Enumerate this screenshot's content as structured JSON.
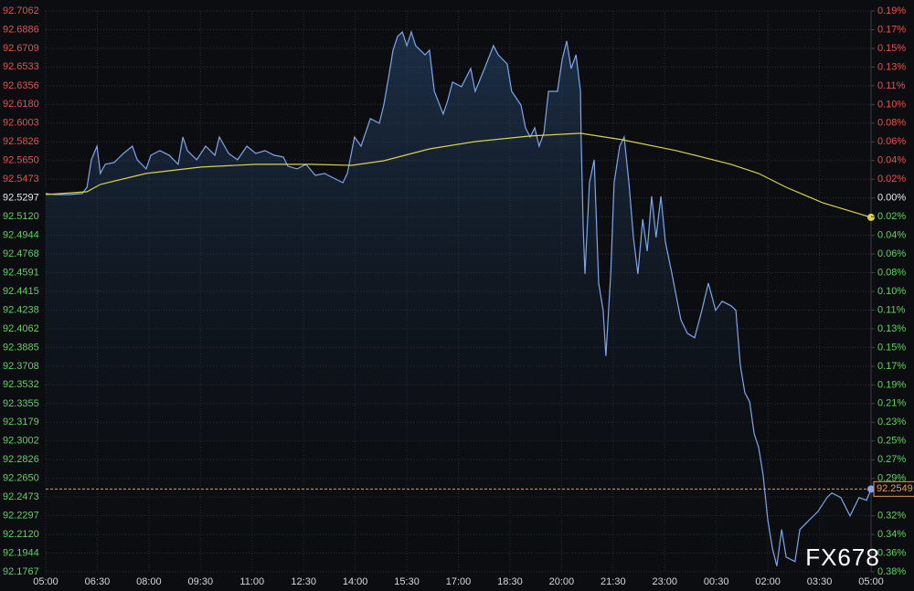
{
  "chart_data": {
    "type": "line",
    "watermark": "FX678",
    "xlim": [
      0,
      24
    ],
    "xticks": [
      {
        "value": 0,
        "label": "05:00"
      },
      {
        "value": 1.5,
        "label": "06:30"
      },
      {
        "value": 3,
        "label": "08:00"
      },
      {
        "value": 4.5,
        "label": "09:30"
      },
      {
        "value": 6,
        "label": "11:00"
      },
      {
        "value": 7.5,
        "label": "12:30"
      },
      {
        "value": 9,
        "label": "14:00"
      },
      {
        "value": 10.5,
        "label": "15:30"
      },
      {
        "value": 12,
        "label": "17:00"
      },
      {
        "value": 13.5,
        "label": "18:30"
      },
      {
        "value": 15,
        "label": "20:00"
      },
      {
        "value": 16.5,
        "label": "21:30"
      },
      {
        "value": 18,
        "label": "23:00"
      },
      {
        "value": 19.5,
        "label": "00:30"
      },
      {
        "value": 21,
        "label": "02:00"
      },
      {
        "value": 22.5,
        "label": "03:30"
      },
      {
        "value": 24,
        "label": "05:00"
      }
    ],
    "ylim": [
      92.1767,
      92.7062
    ],
    "yticks": [
      92.7062,
      92.6886,
      92.6709,
      92.6533,
      92.6356,
      {
        "value": 92.618,
        "label": "92.6180"
      },
      92.6003,
      92.5826,
      {
        "value": 92.565,
        "label": "92.5650"
      },
      92.5473,
      92.5297,
      {
        "value": 92.512,
        "label": "92.5120"
      },
      92.4944,
      92.4768,
      92.4591,
      92.4415,
      92.4238,
      92.4062,
      92.3885,
      92.3708,
      92.3532,
      92.3355,
      92.3179,
      92.3002,
      92.2826,
      {
        "value": 92.265,
        "label": "92.2650"
      },
      92.2473,
      92.2297,
      {
        "value": 92.212,
        "label": "92.2120"
      },
      92.1944,
      92.1767
    ],
    "y2lim": [
      -0.3815,
      0.1908
    ],
    "y2ticks": [
      {
        "value": 0.1908,
        "label": "0.19%"
      },
      {
        "value": 0.1717,
        "label": "0.17%"
      },
      {
        "value": 0.1526,
        "label": "0.15%"
      },
      {
        "value": 0.1335,
        "label": "0.13%"
      },
      {
        "value": 0.1145,
        "label": "0.11%"
      },
      {
        "value": 0.0954,
        "label": "0.10%"
      },
      {
        "value": 0.0763,
        "label": "0.08%"
      },
      {
        "value": 0.0572,
        "label": "0.06%"
      },
      {
        "value": 0.0382,
        "label": "0.04%"
      },
      {
        "value": 0.0191,
        "label": "0.02%"
      },
      {
        "value": 0,
        "label": "0.00%"
      },
      {
        "value": -0.0191,
        "label": "0.02%"
      },
      {
        "value": -0.0382,
        "label": "0.04%"
      },
      {
        "value": -0.0572,
        "label": "0.06%"
      },
      {
        "value": -0.0763,
        "label": "0.08%"
      },
      {
        "value": -0.0954,
        "label": "0.10%"
      },
      {
        "value": -0.1145,
        "label": "0.11%"
      },
      {
        "value": -0.1335,
        "label": "0.13%"
      },
      {
        "value": -0.1526,
        "label": "0.15%"
      },
      {
        "value": -0.1717,
        "label": "0.17%"
      },
      {
        "value": -0.1908,
        "label": "0.19%"
      },
      {
        "value": -0.2098,
        "label": "0.21%"
      },
      {
        "value": -0.2289,
        "label": "0.23%"
      },
      {
        "value": -0.248,
        "label": "0.25%"
      },
      {
        "value": -0.2671,
        "label": "0.27%"
      },
      {
        "value": -0.2862,
        "label": "0.29%"
      },
      {
        "value": -0.3243,
        "label": "0.32%"
      },
      {
        "value": -0.3434,
        "label": "0.34%"
      },
      {
        "value": -0.3625,
        "label": "0.36%"
      },
      {
        "value": -0.3815,
        "label": "0.38%"
      }
    ],
    "grid": true,
    "series": [
      {
        "color": "#7fa6e8",
        "x": [
          0,
          0.27,
          0.66,
          1.06,
          1.2,
          1.33,
          1.49,
          1.59,
          1.73,
          1.99,
          2.26,
          2.52,
          2.66,
          2.92,
          3.06,
          3.32,
          3.59,
          3.85,
          3.99,
          4.12,
          4.39,
          4.65,
          4.92,
          5.05,
          5.32,
          5.58,
          5.85,
          6.11,
          6.38,
          6.64,
          6.91,
          7.04,
          7.31,
          7.57,
          7.84,
          8.11,
          8.37,
          8.64,
          8.77,
          8.98,
          9.17,
          9.44,
          9.7,
          9.83,
          9.97,
          10.1,
          10.23,
          10.37,
          10.5,
          10.63,
          10.76,
          11.03,
          11.16,
          11.3,
          11.56,
          11.69,
          11.83,
          12.09,
          12.36,
          12.49,
          12.76,
          13.02,
          13.16,
          13.42,
          13.55,
          13.82,
          13.95,
          14.09,
          14.22,
          14.35,
          14.49,
          14.62,
          14.88,
          15.02,
          15.15,
          15.28,
          15.42,
          15.55,
          15.57,
          15.63,
          15.68,
          15.81,
          15.95,
          16.08,
          16.21,
          16.29,
          16.43,
          16.53,
          16.69,
          16.82,
          16.96,
          17.09,
          17.22,
          17.36,
          17.49,
          17.62,
          17.75,
          17.89,
          18.02,
          18.21,
          18.34,
          18.47,
          18.66,
          18.87,
          19.08,
          19.27,
          19.48,
          19.67,
          19.93,
          20.07,
          20.2,
          20.33,
          20.47,
          20.6,
          20.73,
          20.86,
          21,
          21.13,
          21.26,
          21.4,
          21.53,
          21.79,
          21.93,
          22.19,
          22.46,
          22.72,
          22.86,
          23.12,
          23.39,
          23.65,
          23.87,
          24
        ],
        "values": [
          92.5338,
          92.5329,
          92.5329,
          92.5338,
          92.5398,
          92.5657,
          92.5786,
          92.5528,
          92.5614,
          92.5631,
          92.5717,
          92.5786,
          92.5657,
          92.5571,
          92.57,
          92.5743,
          92.57,
          92.5614,
          92.5872,
          92.5743,
          92.5657,
          92.5786,
          92.57,
          92.5872,
          92.5717,
          92.5657,
          92.5786,
          92.5717,
          92.5743,
          92.57,
          92.5683,
          92.5597,
          92.5571,
          92.5614,
          92.551,
          92.5528,
          92.5485,
          92.5441,
          92.5528,
          92.5872,
          92.5786,
          92.6045,
          92.6002,
          92.6174,
          92.6433,
          92.6691,
          92.6821,
          92.6864,
          92.6734,
          92.6864,
          92.6734,
          92.6648,
          92.6691,
          92.6303,
          92.6088,
          92.6217,
          92.639,
          92.6347,
          92.6519,
          92.6303,
          92.6519,
          92.6734,
          92.6648,
          92.6562,
          92.6303,
          92.6174,
          92.5959,
          92.5872,
          92.5959,
          92.5786,
          92.5916,
          92.6303,
          92.6303,
          92.6605,
          92.6778,
          92.6519,
          92.6648,
          92.6303,
          92.5872,
          92.501,
          92.4579,
          92.5441,
          92.5657,
          92.4493,
          92.4235,
          92.3804,
          92.4579,
          92.5441,
          92.5786,
          92.5872,
          92.5441,
          92.4924,
          92.4579,
          92.5097,
          92.4795,
          92.5312,
          92.4924,
          92.5312,
          92.4881,
          92.4579,
          92.4364,
          92.4148,
          92.4019,
          92.3976,
          92.4235,
          92.4493,
          92.4235,
          92.4321,
          92.4278,
          92.4235,
          92.3717,
          92.3459,
          92.3373,
          92.3071,
          92.2942,
          92.2683,
          92.2252,
          92.1993,
          92.1821,
          92.2166,
          92.1907,
          92.1864,
          92.2166,
          92.2252,
          92.2338,
          92.2468,
          92.2511,
          92.2468,
          92.2295,
          92.2468,
          92.2442,
          92.2549
        ]
      },
      {
        "color": "#d8d24a",
        "x": [
          0,
          1.2,
          1.59,
          2.92,
          4.52,
          6.11,
          7.71,
          8.9,
          9.83,
          11.16,
          12.49,
          14.09,
          15.55,
          16.75,
          18.34,
          19.93,
          20.73,
          21.53,
          22.59,
          24
        ],
        "values": [
          92.5329,
          92.5355,
          92.5424,
          92.5528,
          92.5588,
          92.5614,
          92.5614,
          92.5605,
          92.5648,
          92.576,
          92.5829,
          92.5881,
          92.5907,
          92.5847,
          92.5743,
          92.5614,
          92.5528,
          92.5398,
          92.5252,
          92.5114
        ]
      }
    ]
  }
}
